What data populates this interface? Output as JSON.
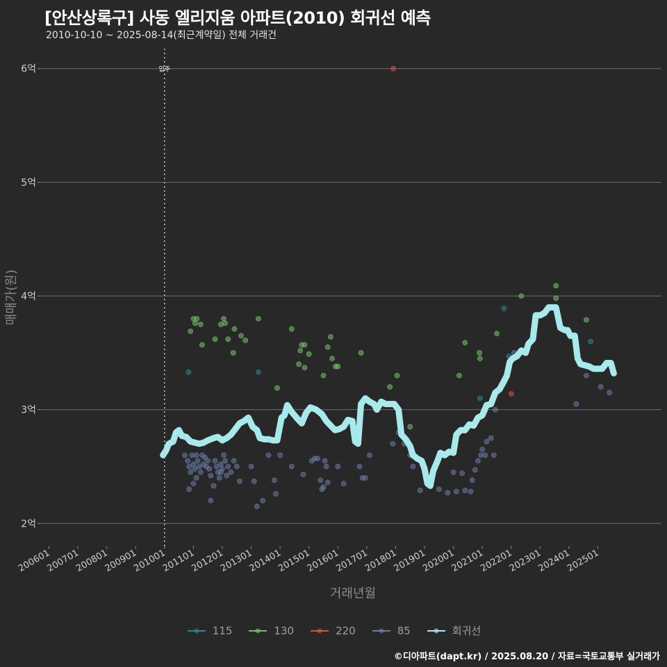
{
  "chart_data": {
    "type": "scatter",
    "title": "[안산상록구] 사동 엘리지움 아파트(2010) 회귀선 예측",
    "subtitle": "2010-10-10 ~ 2025-08-14(최근계약일) 전체 거래건",
    "xlabel": "거래년월",
    "ylabel": "매매가(원)",
    "ylim": [
      1.8,
      6.2
    ],
    "xlim": [
      2005.7,
      2027.2
    ],
    "y_ticks": [
      {
        "value": 2,
        "label": "2억"
      },
      {
        "value": 3,
        "label": "3억"
      },
      {
        "value": 4,
        "label": "4억"
      },
      {
        "value": 5,
        "label": "5억"
      },
      {
        "value": 6,
        "label": "6억"
      }
    ],
    "x_ticks": [
      {
        "value": 2006.0,
        "label": "200601"
      },
      {
        "value": 2007.0,
        "label": "200701"
      },
      {
        "value": 2008.0,
        "label": "200801"
      },
      {
        "value": 2009.0,
        "label": "200901"
      },
      {
        "value": 2010.0,
        "label": "201001"
      },
      {
        "value": 2011.0,
        "label": "201101"
      },
      {
        "value": 2012.0,
        "label": "201201"
      },
      {
        "value": 2013.0,
        "label": "201301"
      },
      {
        "value": 2014.0,
        "label": "201401"
      },
      {
        "value": 2015.0,
        "label": "201501"
      },
      {
        "value": 2016.0,
        "label": "201601"
      },
      {
        "value": 2017.0,
        "label": "201701"
      },
      {
        "value": 2018.0,
        "label": "201801"
      },
      {
        "value": 2019.0,
        "label": "201901"
      },
      {
        "value": 2020.0,
        "label": "202001"
      },
      {
        "value": 2021.0,
        "label": "202101"
      },
      {
        "value": 2022.0,
        "label": "202201"
      },
      {
        "value": 2023.0,
        "label": "202301"
      },
      {
        "value": 2024.0,
        "label": "202401"
      },
      {
        "value": 2025.0,
        "label": "202501"
      }
    ],
    "annotation": {
      "label": "입주",
      "x": 2010.0
    },
    "series": [
      {
        "name": "115",
        "color": "#2a8a8a",
        "points": [
          [
            2010.83,
            3.33
          ],
          [
            2013.25,
            3.33
          ],
          [
            2020.92,
            3.1
          ],
          [
            2021.75,
            3.89
          ],
          [
            2021.92,
            3.47
          ],
          [
            2024.75,
            3.6
          ]
        ]
      },
      {
        "name": "130",
        "color": "#76c26a",
        "points": [
          [
            2010.9,
            3.69
          ],
          [
            2011.0,
            3.8
          ],
          [
            2011.06,
            3.76
          ],
          [
            2011.12,
            3.8
          ],
          [
            2011.3,
            3.57
          ],
          [
            2011.25,
            3.75
          ],
          [
            2011.75,
            3.62
          ],
          [
            2011.95,
            3.75
          ],
          [
            2012.05,
            3.8
          ],
          [
            2012.1,
            3.76
          ],
          [
            2012.2,
            3.62
          ],
          [
            2012.38,
            3.5
          ],
          [
            2012.42,
            3.71
          ],
          [
            2012.65,
            3.65
          ],
          [
            2012.8,
            3.61
          ],
          [
            2013.25,
            3.8
          ],
          [
            2013.9,
            3.19
          ],
          [
            2014.4,
            3.71
          ],
          [
            2014.65,
            3.4
          ],
          [
            2014.7,
            3.52
          ],
          [
            2014.75,
            3.57
          ],
          [
            2014.85,
            3.57
          ],
          [
            2014.85,
            3.37
          ],
          [
            2015.0,
            3.49
          ],
          [
            2015.5,
            3.3
          ],
          [
            2015.65,
            3.55
          ],
          [
            2015.75,
            3.64
          ],
          [
            2015.8,
            3.45
          ],
          [
            2015.92,
            3.38
          ],
          [
            2016.0,
            3.38
          ],
          [
            2016.8,
            3.5
          ],
          [
            2017.8,
            3.2
          ],
          [
            2018.05,
            3.3
          ],
          [
            2018.5,
            2.85
          ],
          [
            2020.2,
            3.3
          ],
          [
            2020.4,
            3.59
          ],
          [
            2020.9,
            3.5
          ],
          [
            2020.92,
            3.45
          ],
          [
            2021.5,
            3.67
          ],
          [
            2022.35,
            4.0
          ],
          [
            2023.55,
            4.09
          ],
          [
            2023.55,
            3.98
          ],
          [
            2024.6,
            3.79
          ]
        ]
      },
      {
        "name": "220",
        "color": "#d9534f",
        "points": [
          [
            2017.92,
            6.0
          ],
          [
            2022.0,
            3.14
          ]
        ]
      },
      {
        "name": "85",
        "color": "#6a7ea6",
        "points": [
          [
            2010.7,
            2.6
          ],
          [
            2010.8,
            2.55
          ],
          [
            2010.85,
            2.5
          ],
          [
            2010.9,
            2.45
          ],
          [
            2010.95,
            2.6
          ],
          [
            2011.0,
            2.52
          ],
          [
            2011.05,
            2.48
          ],
          [
            2011.1,
            2.6
          ],
          [
            2011.15,
            2.55
          ],
          [
            2011.2,
            2.5
          ],
          [
            2011.25,
            2.45
          ],
          [
            2011.3,
            2.6
          ],
          [
            2011.35,
            2.52
          ],
          [
            2011.4,
            2.58
          ],
          [
            2011.45,
            2.5
          ],
          [
            2011.5,
            2.55
          ],
          [
            2011.55,
            2.48
          ],
          [
            2011.6,
            2.42
          ],
          [
            2011.1,
            2.4
          ],
          [
            2011.0,
            2.35
          ],
          [
            2010.85,
            2.3
          ],
          [
            2011.75,
            2.55
          ],
          [
            2011.8,
            2.5
          ],
          [
            2011.85,
            2.45
          ],
          [
            2011.9,
            2.4
          ],
          [
            2011.95,
            2.52
          ],
          [
            2012.0,
            2.48
          ],
          [
            2012.05,
            2.6
          ],
          [
            2012.1,
            2.55
          ],
          [
            2012.15,
            2.42
          ],
          [
            2012.2,
            2.5
          ],
          [
            2012.3,
            2.45
          ],
          [
            2012.4,
            2.55
          ],
          [
            2012.5,
            2.5
          ],
          [
            2012.6,
            2.37
          ],
          [
            2011.6,
            2.2
          ],
          [
            2011.7,
            2.33
          ],
          [
            2011.95,
            2.45
          ],
          [
            2013.0,
            2.5
          ],
          [
            2013.1,
            2.37
          ],
          [
            2013.2,
            2.15
          ],
          [
            2013.4,
            2.2
          ],
          [
            2013.6,
            2.6
          ],
          [
            2013.8,
            2.38
          ],
          [
            2013.85,
            2.26
          ],
          [
            2014.0,
            2.6
          ],
          [
            2014.4,
            2.5
          ],
          [
            2014.8,
            2.43
          ],
          [
            2015.1,
            2.55
          ],
          [
            2015.2,
            2.57
          ],
          [
            2015.3,
            2.57
          ],
          [
            2015.4,
            2.38
          ],
          [
            2015.45,
            2.3
          ],
          [
            2015.5,
            2.32
          ],
          [
            2015.55,
            2.55
          ],
          [
            2015.6,
            2.5
          ],
          [
            2015.65,
            2.36
          ],
          [
            2016.0,
            2.5
          ],
          [
            2016.2,
            2.35
          ],
          [
            2016.75,
            2.5
          ],
          [
            2016.85,
            2.4
          ],
          [
            2016.95,
            2.4
          ],
          [
            2017.1,
            2.6
          ],
          [
            2017.9,
            2.7
          ],
          [
            2018.1,
            2.8
          ],
          [
            2018.3,
            2.7
          ],
          [
            2018.5,
            2.6
          ],
          [
            2018.6,
            2.5
          ],
          [
            2018.85,
            2.29
          ],
          [
            2019.2,
            2.4
          ],
          [
            2019.5,
            2.3
          ],
          [
            2019.8,
            2.27
          ],
          [
            2020.0,
            2.45
          ],
          [
            2020.1,
            2.28
          ],
          [
            2020.3,
            2.44
          ],
          [
            2020.4,
            2.29
          ],
          [
            2020.6,
            2.28
          ],
          [
            2020.65,
            2.38
          ],
          [
            2020.75,
            2.47
          ],
          [
            2020.85,
            2.55
          ],
          [
            2020.95,
            2.6
          ],
          [
            2021.0,
            2.65
          ],
          [
            2021.1,
            2.6
          ],
          [
            2021.15,
            2.72
          ],
          [
            2021.3,
            2.75
          ],
          [
            2021.4,
            2.6
          ],
          [
            2021.45,
            3.0
          ],
          [
            2022.1,
            3.5
          ],
          [
            2024.25,
            3.05
          ],
          [
            2024.6,
            3.3
          ],
          [
            2025.1,
            3.2
          ],
          [
            2025.4,
            3.15
          ]
        ]
      }
    ],
    "regression": {
      "name": "회귀선",
      "color": "#a8eaec",
      "points": [
        [
          2009.95,
          2.6
        ],
        [
          2010.05,
          2.64
        ],
        [
          2010.15,
          2.7
        ],
        [
          2010.3,
          2.72
        ],
        [
          2010.4,
          2.8
        ],
        [
          2010.5,
          2.82
        ],
        [
          2010.6,
          2.77
        ],
        [
          2010.75,
          2.76
        ],
        [
          2010.9,
          2.72
        ],
        [
          2011.05,
          2.71
        ],
        [
          2011.2,
          2.7
        ],
        [
          2011.35,
          2.71
        ],
        [
          2011.5,
          2.73
        ],
        [
          2011.7,
          2.75
        ],
        [
          2011.85,
          2.76
        ],
        [
          2012.0,
          2.73
        ],
        [
          2012.15,
          2.75
        ],
        [
          2012.3,
          2.78
        ],
        [
          2012.45,
          2.83
        ],
        [
          2012.6,
          2.88
        ],
        [
          2012.75,
          2.9
        ],
        [
          2012.9,
          2.93
        ],
        [
          2013.05,
          2.85
        ],
        [
          2013.2,
          2.82
        ],
        [
          2013.3,
          2.75
        ],
        [
          2013.45,
          2.74
        ],
        [
          2013.6,
          2.74
        ],
        [
          2013.75,
          2.73
        ],
        [
          2013.9,
          2.73
        ],
        [
          2014.05,
          2.93
        ],
        [
          2014.15,
          2.95
        ],
        [
          2014.25,
          3.04
        ],
        [
          2014.4,
          2.98
        ],
        [
          2014.6,
          2.92
        ],
        [
          2014.75,
          2.88
        ],
        [
          2014.9,
          2.97
        ],
        [
          2015.05,
          3.02
        ],
        [
          2015.25,
          3.0
        ],
        [
          2015.45,
          2.96
        ],
        [
          2015.6,
          2.9
        ],
        [
          2015.75,
          2.86
        ],
        [
          2015.9,
          2.82
        ],
        [
          2016.05,
          2.83
        ],
        [
          2016.2,
          2.85
        ],
        [
          2016.35,
          2.91
        ],
        [
          2016.5,
          2.9
        ],
        [
          2016.6,
          2.72
        ],
        [
          2016.7,
          2.7
        ],
        [
          2016.8,
          3.05
        ],
        [
          2016.95,
          3.1
        ],
        [
          2017.1,
          3.07
        ],
        [
          2017.25,
          3.05
        ],
        [
          2017.35,
          3.0
        ],
        [
          2017.5,
          3.07
        ],
        [
          2017.65,
          3.05
        ],
        [
          2017.8,
          3.05
        ],
        [
          2017.95,
          3.05
        ],
        [
          2018.1,
          3.0
        ],
        [
          2018.2,
          2.78
        ],
        [
          2018.35,
          2.74
        ],
        [
          2018.5,
          2.68
        ],
        [
          2018.6,
          2.6
        ],
        [
          2018.75,
          2.57
        ],
        [
          2018.9,
          2.55
        ],
        [
          2019.0,
          2.48
        ],
        [
          2019.1,
          2.35
        ],
        [
          2019.2,
          2.33
        ],
        [
          2019.3,
          2.46
        ],
        [
          2019.45,
          2.55
        ],
        [
          2019.55,
          2.62
        ],
        [
          2019.7,
          2.6
        ],
        [
          2019.85,
          2.63
        ],
        [
          2020.0,
          2.62
        ],
        [
          2020.1,
          2.78
        ],
        [
          2020.25,
          2.82
        ],
        [
          2020.4,
          2.82
        ],
        [
          2020.55,
          2.87
        ],
        [
          2020.7,
          2.86
        ],
        [
          2020.85,
          2.93
        ],
        [
          2021.0,
          2.95
        ],
        [
          2021.15,
          3.04
        ],
        [
          2021.3,
          3.05
        ],
        [
          2021.45,
          3.15
        ],
        [
          2021.6,
          3.18
        ],
        [
          2021.75,
          3.25
        ],
        [
          2021.85,
          3.3
        ],
        [
          2021.95,
          3.42
        ],
        [
          2022.05,
          3.45
        ],
        [
          2022.2,
          3.47
        ],
        [
          2022.35,
          3.52
        ],
        [
          2022.5,
          3.5
        ],
        [
          2022.6,
          3.58
        ],
        [
          2022.75,
          3.62
        ],
        [
          2022.85,
          3.83
        ],
        [
          2023.0,
          3.83
        ],
        [
          2023.15,
          3.85
        ],
        [
          2023.3,
          3.9
        ],
        [
          2023.45,
          3.9
        ],
        [
          2023.55,
          3.9
        ],
        [
          2023.7,
          3.72
        ],
        [
          2023.85,
          3.7
        ],
        [
          2023.95,
          3.7
        ],
        [
          2024.05,
          3.65
        ],
        [
          2024.2,
          3.65
        ],
        [
          2024.3,
          3.45
        ],
        [
          2024.4,
          3.4
        ],
        [
          2024.55,
          3.39
        ],
        [
          2024.7,
          3.38
        ],
        [
          2024.85,
          3.36
        ],
        [
          2025.0,
          3.36
        ],
        [
          2025.15,
          3.36
        ],
        [
          2025.3,
          3.41
        ],
        [
          2025.45,
          3.41
        ],
        [
          2025.55,
          3.32
        ]
      ]
    }
  },
  "credit": "©디아파트(dapt.kr) / 2025.08.20 / 자료=국토교통부 실거래가"
}
